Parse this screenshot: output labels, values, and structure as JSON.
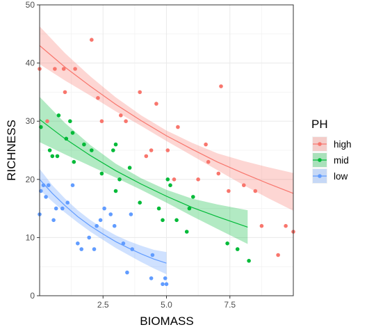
{
  "chart_data": {
    "type": "scatter",
    "xlabel": "BIOMASS",
    "ylabel": "RICHNESS",
    "xlim": [
      0,
      10
    ],
    "ylim": [
      0,
      50
    ],
    "x_ticks": [
      2.5,
      5.0,
      7.5
    ],
    "x_tick_labels": [
      "2.5",
      "5.0",
      "7.5"
    ],
    "y_ticks": [
      0,
      10,
      20,
      30,
      40,
      50
    ],
    "y_tick_labels": [
      "0",
      "10",
      "20",
      "30",
      "40",
      "50"
    ],
    "grid": true,
    "legend": {
      "title": "PH",
      "position": "right"
    },
    "series": [
      {
        "name": "high",
        "color": "#F8766D",
        "points": [
          [
            0.0,
            39
          ],
          [
            0.3,
            30
          ],
          [
            0.6,
            39
          ],
          [
            0.95,
            39
          ],
          [
            1.0,
            35
          ],
          [
            1.4,
            39
          ],
          [
            2.05,
            44
          ],
          [
            2.3,
            34
          ],
          [
            2.45,
            30
          ],
          [
            3.2,
            31
          ],
          [
            3.4,
            30
          ],
          [
            3.95,
            35
          ],
          [
            4.2,
            24
          ],
          [
            4.4,
            25
          ],
          [
            4.6,
            33
          ],
          [
            5.05,
            25
          ],
          [
            5.3,
            20
          ],
          [
            5.45,
            29
          ],
          [
            6.25,
            20
          ],
          [
            6.55,
            26
          ],
          [
            6.65,
            23
          ],
          [
            7.15,
            36
          ],
          [
            7.45,
            18
          ],
          [
            7.05,
            21
          ],
          [
            8.05,
            19
          ],
          [
            8.5,
            18
          ],
          [
            8.75,
            12
          ],
          [
            9.4,
            7
          ],
          [
            9.7,
            12
          ],
          [
            10.0,
            11
          ]
        ],
        "fit": [
          [
            0.0,
            43.0
          ],
          [
            1.0,
            39.3
          ],
          [
            2.0,
            36.0
          ],
          [
            3.0,
            32.9
          ],
          [
            4.0,
            30.1
          ],
          [
            5.0,
            27.5
          ],
          [
            6.0,
            25.2
          ],
          [
            7.0,
            23.0
          ],
          [
            8.0,
            21.1
          ],
          [
            9.0,
            19.3
          ],
          [
            10.0,
            17.6
          ]
        ],
        "band_lower": [
          [
            0.0,
            39.8
          ],
          [
            1.0,
            37.0
          ],
          [
            2.0,
            34.4
          ],
          [
            3.0,
            31.7
          ],
          [
            4.0,
            29.2
          ],
          [
            5.0,
            26.6
          ],
          [
            6.0,
            24.1
          ],
          [
            7.0,
            21.6
          ],
          [
            8.0,
            19.1
          ],
          [
            9.0,
            16.8
          ],
          [
            10.0,
            14.6
          ]
        ],
        "band_upper": [
          [
            0.0,
            46.3
          ],
          [
            1.0,
            41.7
          ],
          [
            2.0,
            37.7
          ],
          [
            3.0,
            34.1
          ],
          [
            4.0,
            31.0
          ],
          [
            5.0,
            28.4
          ],
          [
            6.0,
            26.3
          ],
          [
            7.0,
            24.5
          ],
          [
            8.0,
            23.2
          ],
          [
            9.0,
            22.1
          ],
          [
            10.0,
            21.1
          ]
        ]
      },
      {
        "name": "mid",
        "color": "#00BA38",
        "points": [
          [
            0.05,
            29
          ],
          [
            0.4,
            25
          ],
          [
            0.5,
            24
          ],
          [
            0.7,
            24
          ],
          [
            0.75,
            31
          ],
          [
            1.05,
            27
          ],
          [
            1.2,
            30
          ],
          [
            1.35,
            23
          ],
          [
            1.3,
            28
          ],
          [
            1.75,
            26
          ],
          [
            2.05,
            25
          ],
          [
            2.45,
            21
          ],
          [
            2.9,
            25
          ],
          [
            3.0,
            26
          ],
          [
            3.0,
            18
          ],
          [
            3.15,
            20
          ],
          [
            3.55,
            22
          ],
          [
            3.95,
            16
          ],
          [
            4.7,
            15
          ],
          [
            4.85,
            13
          ],
          [
            5.05,
            20
          ],
          [
            5.15,
            19
          ],
          [
            5.4,
            13
          ],
          [
            5.8,
            11
          ],
          [
            5.9,
            15
          ],
          [
            6.05,
            17
          ],
          [
            7.4,
            9
          ],
          [
            7.8,
            8
          ],
          [
            8.25,
            6
          ]
        ],
        "fit": [
          [
            0.0,
            30.3
          ],
          [
            1.0,
            27.0
          ],
          [
            2.0,
            24.1
          ],
          [
            3.0,
            21.5
          ],
          [
            4.0,
            19.2
          ],
          [
            5.0,
            17.1
          ],
          [
            6.0,
            15.2
          ],
          [
            7.0,
            13.6
          ],
          [
            8.2,
            11.8
          ]
        ],
        "band_lower": [
          [
            0.0,
            26.4
          ],
          [
            1.0,
            24.3
          ],
          [
            2.0,
            22.3
          ],
          [
            3.0,
            20.3
          ],
          [
            4.0,
            18.2
          ],
          [
            5.0,
            16.0
          ],
          [
            6.0,
            13.7
          ],
          [
            7.0,
            11.5
          ],
          [
            8.2,
            8.9
          ]
        ],
        "band_upper": [
          [
            0.0,
            34.2
          ],
          [
            1.0,
            29.7
          ],
          [
            2.0,
            25.9
          ],
          [
            3.0,
            22.7
          ],
          [
            4.0,
            20.2
          ],
          [
            5.0,
            18.2
          ],
          [
            6.0,
            16.7
          ],
          [
            7.0,
            15.7
          ],
          [
            8.2,
            14.7
          ]
        ]
      },
      {
        "name": "low",
        "color": "#619CFF",
        "points": [
          [
            0.0,
            14
          ],
          [
            0.05,
            18
          ],
          [
            0.15,
            19
          ],
          [
            0.25,
            17
          ],
          [
            0.35,
            19
          ],
          [
            0.55,
            13
          ],
          [
            0.65,
            15
          ],
          [
            0.9,
            15
          ],
          [
            1.1,
            16
          ],
          [
            1.3,
            19
          ],
          [
            1.5,
            9
          ],
          [
            1.65,
            8
          ],
          [
            1.95,
            10
          ],
          [
            2.15,
            8
          ],
          [
            2.25,
            12
          ],
          [
            2.4,
            13
          ],
          [
            2.55,
            15
          ],
          [
            2.8,
            14
          ],
          [
            2.95,
            12
          ],
          [
            3.3,
            9
          ],
          [
            3.45,
            4
          ],
          [
            3.6,
            14
          ],
          [
            3.65,
            8
          ],
          [
            4.4,
            3
          ],
          [
            4.45,
            7
          ],
          [
            4.85,
            2
          ],
          [
            4.95,
            3
          ],
          [
            5.0,
            2
          ]
        ],
        "fit": [
          [
            0.0,
            20.0
          ],
          [
            0.5,
            17.6
          ],
          [
            1.0,
            15.5
          ],
          [
            1.5,
            13.6
          ],
          [
            2.0,
            12.0
          ],
          [
            2.5,
            10.6
          ],
          [
            3.0,
            9.3
          ],
          [
            3.5,
            8.2
          ],
          [
            4.0,
            7.2
          ],
          [
            4.5,
            6.3
          ],
          [
            5.0,
            5.6
          ]
        ],
        "band_lower": [
          [
            0.0,
            18.2
          ],
          [
            0.5,
            16.2
          ],
          [
            1.0,
            14.3
          ],
          [
            1.5,
            12.6
          ],
          [
            2.0,
            11.0
          ],
          [
            2.5,
            9.6
          ],
          [
            3.0,
            8.2
          ],
          [
            3.5,
            7.0
          ],
          [
            4.0,
            5.8
          ],
          [
            4.5,
            4.7
          ],
          [
            5.0,
            3.7
          ]
        ],
        "band_upper": [
          [
            0.0,
            21.8
          ],
          [
            0.5,
            19.0
          ],
          [
            1.0,
            16.7
          ],
          [
            1.5,
            14.7
          ],
          [
            2.0,
            13.0
          ],
          [
            2.5,
            11.6
          ],
          [
            3.0,
            10.4
          ],
          [
            3.5,
            9.4
          ],
          [
            4.0,
            8.6
          ],
          [
            4.5,
            7.9
          ],
          [
            5.0,
            7.5
          ]
        ]
      }
    ]
  }
}
